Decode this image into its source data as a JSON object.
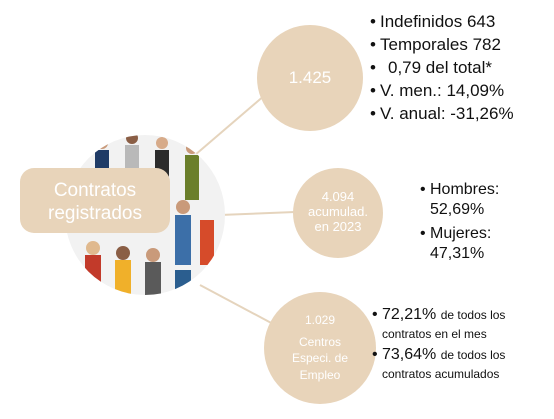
{
  "center": {
    "label": "Contratos registrados"
  },
  "branches": [
    {
      "circle": [
        "1.425"
      ],
      "items": [
        [
          "Indefinidos 643"
        ],
        [
          "Temporales 782"
        ],
        [
          "0,79 del total*"
        ],
        [
          "V. men.: 14,09%"
        ],
        [
          "V. anual: -31,26%"
        ]
      ]
    },
    {
      "circle": [
        "4.094",
        "acumulad.",
        "en 2023"
      ],
      "items": [
        [
          "Hombres:",
          "52,69%"
        ],
        [
          "Mujeres:",
          "47,31%"
        ]
      ]
    },
    {
      "circle": [
        "1.029",
        "Centros",
        "Especi. de",
        "Empleo"
      ],
      "items": [
        {
          "figure": "72,21%",
          "text": "de todos los contratos en el mes"
        },
        {
          "figure": "73,64%",
          "text": "de todos los contratos acumulados"
        }
      ]
    }
  ]
}
